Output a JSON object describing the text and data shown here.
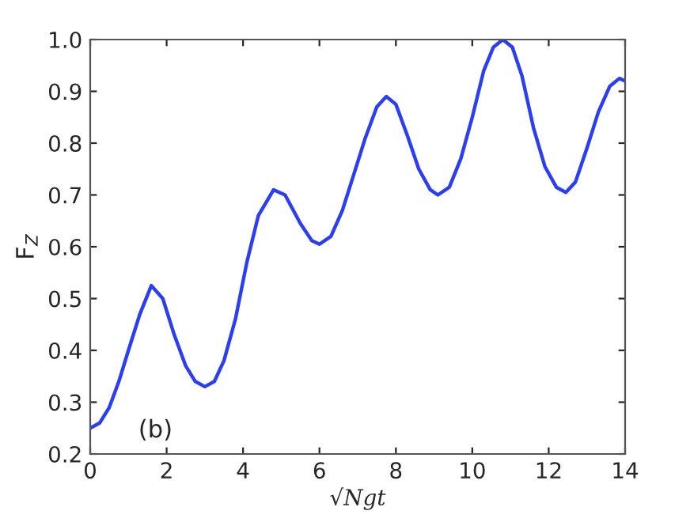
{
  "chart_data": {
    "type": "line",
    "xlabel": "√Ngt",
    "ylabel": "F$_{Z}$",
    "annotations": [
      "(b)"
    ],
    "xlim": [
      0,
      14
    ],
    "xticks": [
      0,
      2,
      4,
      6,
      8,
      10,
      12,
      14
    ],
    "ylim": [
      0.2,
      1.0
    ],
    "yticks": [
      {
        "value": 0.2,
        "label": "0.2"
      },
      {
        "value": 0.3,
        "label": "0.3"
      },
      {
        "value": 0.4,
        "label": "0.4"
      },
      {
        "value": 0.5,
        "label": "0.5"
      },
      {
        "value": 0.6,
        "label": "0.6"
      },
      {
        "value": 0.7,
        "label": "0.7"
      },
      {
        "value": 0.8,
        "label": "0.8"
      },
      {
        "value": 0.9,
        "label": "0.9"
      },
      {
        "value": 1.0,
        "label": "1.0"
      }
    ],
    "grid": false,
    "legend": false,
    "series": [
      {
        "color": "#2b3ff0",
        "x": [
          0,
          0.25,
          0.5,
          0.75,
          1.0,
          1.3,
          1.6,
          1.9,
          2.2,
          2.5,
          2.75,
          3.0,
          3.25,
          3.5,
          3.8,
          4.1,
          4.4,
          4.8,
          5.1,
          5.5,
          5.8,
          6.0,
          6.3,
          6.6,
          6.9,
          7.2,
          7.5,
          7.75,
          8.0,
          8.3,
          8.6,
          8.9,
          9.1,
          9.4,
          9.7,
          10.0,
          10.3,
          10.55,
          10.8,
          11.05,
          11.3,
          11.6,
          11.9,
          12.2,
          12.45,
          12.7,
          13.0,
          13.3,
          13.6,
          13.85,
          14.0
        ],
        "values": [
          0.25,
          0.26,
          0.29,
          0.34,
          0.4,
          0.47,
          0.525,
          0.5,
          0.43,
          0.37,
          0.34,
          0.33,
          0.34,
          0.38,
          0.46,
          0.57,
          0.66,
          0.71,
          0.7,
          0.645,
          0.612,
          0.605,
          0.62,
          0.67,
          0.74,
          0.81,
          0.87,
          0.89,
          0.875,
          0.815,
          0.75,
          0.71,
          0.7,
          0.715,
          0.77,
          0.85,
          0.94,
          0.985,
          1.0,
          0.985,
          0.93,
          0.83,
          0.755,
          0.715,
          0.705,
          0.725,
          0.79,
          0.86,
          0.91,
          0.925,
          0.92
        ]
      }
    ]
  }
}
